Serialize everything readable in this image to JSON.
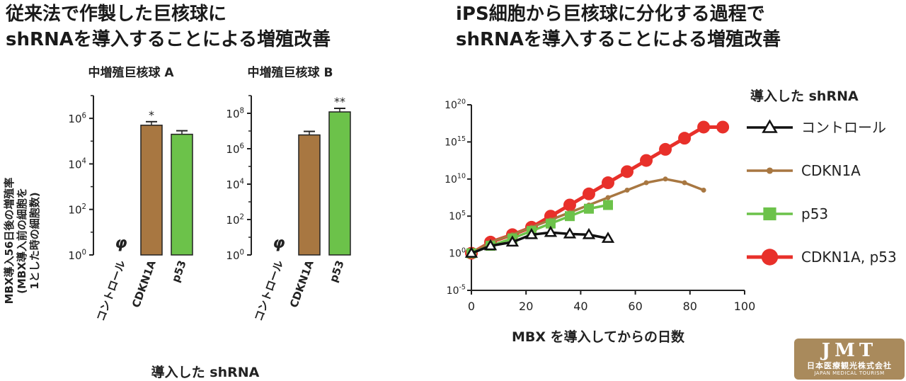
{
  "left_panel": {
    "title_line1": "従来法で作製した巨核球に",
    "title_line2": "shRNAを導入することによる増殖改善",
    "ylabel_line1": "MBX導入56日後の増殖率",
    "ylabel_line2": "(MBX導入前の細胞を",
    "ylabel_line3": "1とした時の細胞数)",
    "xlabel": "導入した shRNA",
    "null_symbol": "φ"
  },
  "right_panel": {
    "title_line1": "iPS細胞から巨核球に分化する過程で",
    "title_line2": "shRNAを導入することによる増殖改善",
    "xlabel": "MBX を導入してからの日数",
    "legend_title": "導入した shRNA"
  },
  "logo": {
    "mark": "JMT",
    "jp": "日本医療観光株式会社",
    "en": "JAPAN MEDICAL TOURISM"
  },
  "colors": {
    "brown": "#a87741",
    "green": "#6cc24a",
    "red": "#e8302a",
    "black": "#111111"
  },
  "chart_data": [
    {
      "type": "bar",
      "title": "中増殖巨核球 A",
      "yscale": "log",
      "ylim": [
        1,
        10000000
      ],
      "yticks": [
        "10^0",
        "10^2",
        "10^4",
        "10^6"
      ],
      "categories": [
        "コントロール",
        "CDKN1A",
        "p53"
      ],
      "values": [
        null,
        500000,
        200000
      ],
      "significance": [
        "",
        "*",
        ""
      ]
    },
    {
      "type": "bar",
      "title": "中増殖巨核球 B",
      "yscale": "log",
      "ylim": [
        1,
        1000000000
      ],
      "yticks": [
        "10^0",
        "10^2",
        "10^4",
        "10^6",
        "10^8"
      ],
      "categories": [
        "コントロール",
        "CDKN1A",
        "p53"
      ],
      "values": [
        null,
        6000000,
        120000000
      ],
      "significance": [
        "",
        "",
        "**"
      ]
    },
    {
      "type": "line",
      "yscale": "log",
      "xlim": [
        0,
        100
      ],
      "xticks": [
        0,
        20,
        40,
        60,
        80,
        100
      ],
      "ylim": [
        -5,
        20
      ],
      "yticks": [
        "10^-5",
        "10^0",
        "10^5",
        "10^10",
        "10^15",
        "10^20"
      ],
      "legend_position": "right",
      "series": [
        {
          "name": "コントロール",
          "marker": "triangle",
          "color": "#111111",
          "x": [
            0,
            7,
            15,
            22,
            29,
            36,
            43,
            50
          ],
          "log10_y": [
            0,
            1,
            1.5,
            2.5,
            2.8,
            2.6,
            2.5,
            2.0
          ]
        },
        {
          "name": "CDKN1A",
          "marker": "dot",
          "color": "#a87741",
          "x": [
            0,
            7,
            15,
            22,
            29,
            36,
            43,
            50,
            57,
            64,
            71,
            78,
            85
          ],
          "log10_y": [
            0,
            1.5,
            2.5,
            3.5,
            4.5,
            5.5,
            6.5,
            7.5,
            8.5,
            9.5,
            10,
            9.5,
            8.5
          ]
        },
        {
          "name": "p53",
          "marker": "square",
          "color": "#6cc24a",
          "x": [
            0,
            7,
            15,
            22,
            29,
            36,
            43,
            50
          ],
          "log10_y": [
            0,
            1,
            2,
            3,
            4,
            5,
            6,
            6.5
          ]
        },
        {
          "name": "CDKN1A, p53",
          "marker": "circle",
          "color": "#e8302a",
          "x": [
            0,
            7,
            15,
            22,
            29,
            36,
            43,
            50,
            57,
            64,
            71,
            78,
            85,
            92
          ],
          "log10_y": [
            0,
            1.5,
            2.5,
            3.5,
            5,
            6.5,
            8,
            9.5,
            11,
            12.5,
            14,
            15.5,
            17,
            17
          ]
        }
      ]
    }
  ]
}
